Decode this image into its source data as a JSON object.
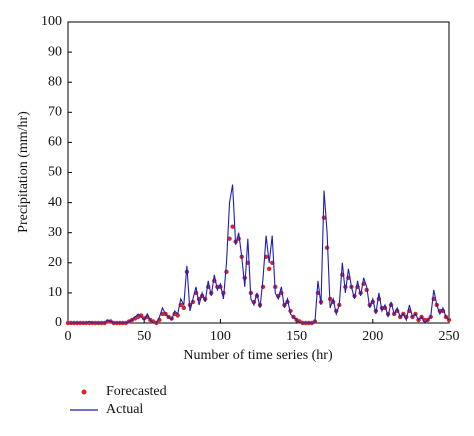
{
  "chart_data": {
    "type": "line",
    "xlabel": "Number of time series (hr)",
    "ylabel": "Precipitation (mm/hr)",
    "xlim": [
      0,
      250
    ],
    "xticks": [
      0,
      50,
      100,
      150,
      200,
      250
    ],
    "ylim": [
      0,
      100
    ],
    "yticks": [
      0,
      10,
      20,
      30,
      40,
      50,
      60,
      70,
      80,
      90,
      100
    ],
    "x": [
      0,
      2,
      4,
      6,
      8,
      10,
      12,
      14,
      16,
      18,
      20,
      22,
      24,
      26,
      28,
      30,
      32,
      34,
      36,
      38,
      40,
      42,
      44,
      46,
      48,
      50,
      52,
      54,
      56,
      58,
      60,
      62,
      64,
      66,
      68,
      70,
      72,
      74,
      76,
      78,
      80,
      82,
      84,
      86,
      88,
      90,
      92,
      94,
      96,
      98,
      100,
      102,
      104,
      106,
      108,
      110,
      112,
      114,
      116,
      118,
      120,
      122,
      124,
      126,
      128,
      130,
      132,
      134,
      136,
      138,
      140,
      142,
      144,
      146,
      148,
      150,
      152,
      154,
      156,
      158,
      160,
      162,
      164,
      166,
      168,
      170,
      172,
      174,
      176,
      178,
      180,
      182,
      184,
      186,
      188,
      190,
      192,
      194,
      196,
      198,
      200,
      202,
      204,
      206,
      208,
      210,
      212,
      214,
      216,
      218,
      220,
      222,
      224,
      226,
      228,
      230,
      232,
      234,
      236,
      238,
      240,
      242,
      244,
      246,
      248,
      250
    ],
    "series": [
      {
        "name": "Forecasted",
        "color": "#d62728",
        "mode": "markers",
        "values": [
          0,
          0,
          0,
          0,
          0,
          0,
          0,
          0,
          0,
          0,
          0,
          0,
          0,
          0.5,
          0.5,
          0,
          0,
          0,
          0,
          0,
          0.5,
          1,
          1.5,
          2,
          2.5,
          1.5,
          2,
          1,
          0.5,
          0,
          1,
          3,
          3,
          2,
          1.5,
          3,
          2.5,
          6,
          5,
          17,
          6,
          7,
          10,
          8,
          9,
          8,
          12,
          10,
          14,
          12,
          12,
          10,
          17,
          28,
          32,
          27,
          28,
          22,
          15,
          20,
          10,
          7,
          9,
          6,
          12,
          22,
          18,
          20,
          12,
          9,
          10,
          6,
          7,
          4,
          2,
          1,
          0.5,
          0,
          0,
          0,
          0,
          0.5,
          10,
          7,
          35,
          25,
          8,
          7,
          4,
          6,
          16,
          12,
          15,
          12,
          9,
          12,
          10,
          13,
          11,
          6,
          7,
          4,
          8,
          5,
          5,
          3,
          6,
          3,
          4,
          2,
          3,
          2,
          4,
          2,
          3,
          1,
          2,
          1,
          1,
          2,
          8,
          6,
          4,
          4,
          2,
          1
        ]
      },
      {
        "name": "Actual",
        "color": "#1f1fb4",
        "mode": "lines",
        "values": [
          0,
          0,
          0,
          0,
          0,
          0,
          0,
          0.5,
          0,
          0,
          0,
          0,
          0,
          1,
          0.5,
          0,
          0,
          0,
          0,
          0,
          0.5,
          1,
          2,
          3,
          2,
          1,
          3,
          1,
          0,
          0,
          2,
          5,
          3,
          2,
          1,
          4,
          3,
          8,
          6,
          19,
          4,
          8,
          12,
          6,
          10,
          7,
          14,
          9,
          16,
          11,
          13,
          8,
          20,
          40,
          46,
          26,
          30,
          22,
          12,
          28,
          8,
          6,
          10,
          5,
          15,
          29,
          20,
          29,
          10,
          8,
          12,
          5,
          8,
          3,
          2,
          1,
          0,
          0,
          0,
          0,
          0,
          0,
          14,
          6,
          44,
          30,
          5,
          8,
          3,
          6,
          20,
          10,
          18,
          12,
          8,
          14,
          9,
          15,
          12,
          5,
          8,
          3,
          10,
          4,
          6,
          2,
          7,
          3,
          5,
          2,
          3,
          1,
          6,
          2,
          3,
          1,
          2,
          0,
          1,
          2,
          11,
          6,
          3,
          5,
          2,
          1
        ]
      }
    ]
  }
}
